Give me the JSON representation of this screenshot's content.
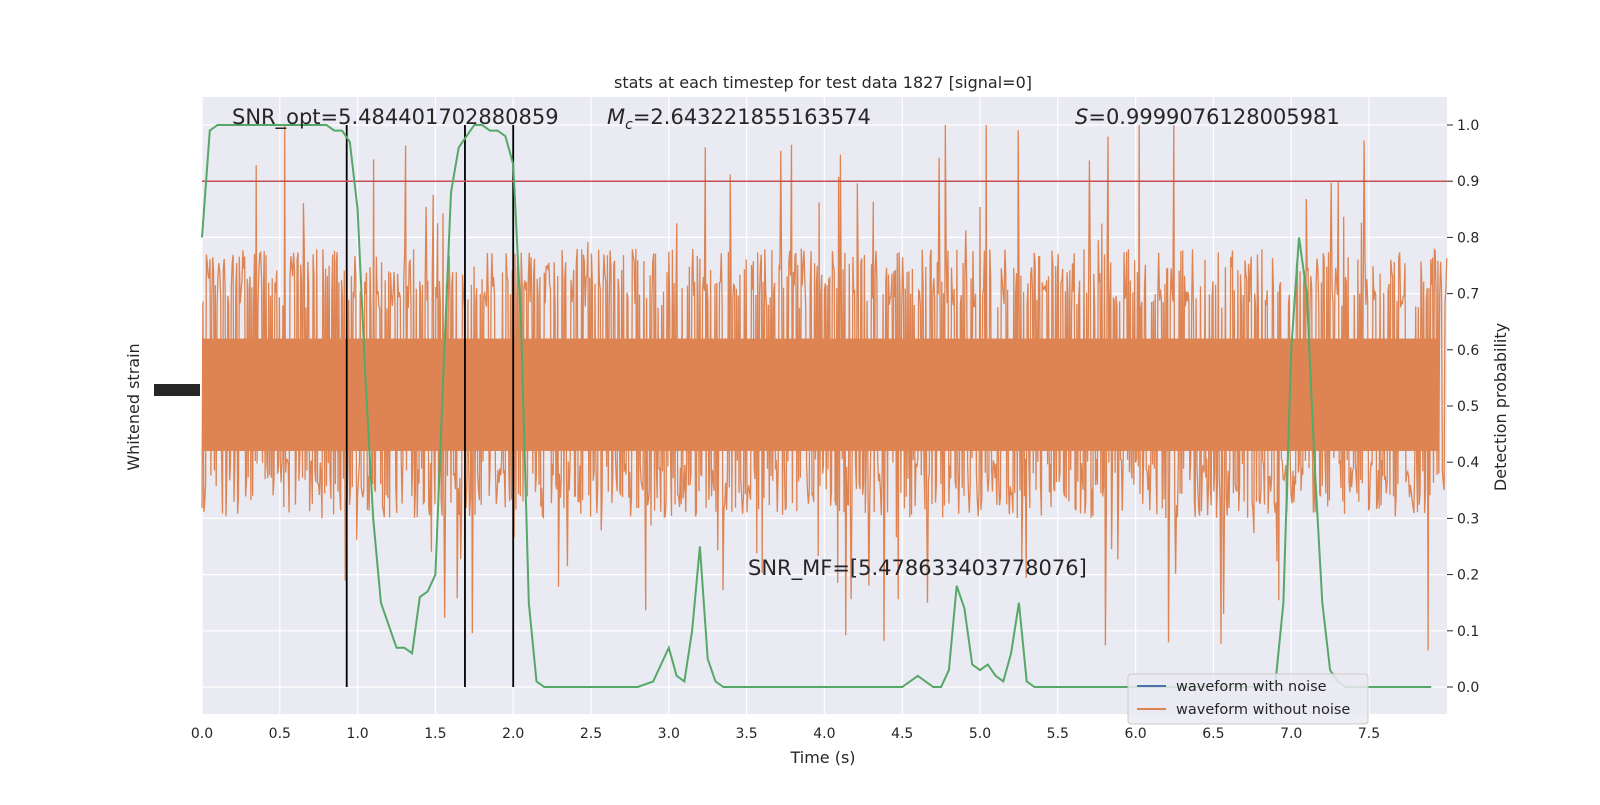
{
  "chart_data": {
    "type": "line",
    "title": "stats at each timestep for test data 1827 [signal=0]",
    "xlabel": "Time (s)",
    "ylabel_left": "Whitened strain",
    "ylabel_right": "Detection probability",
    "xlim": [
      0.0,
      8.0
    ],
    "ylim_right": [
      -0.05,
      1.05
    ],
    "x_ticks": [
      "0.0",
      "0.5",
      "1.0",
      "1.5",
      "2.0",
      "2.5",
      "3.0",
      "3.5",
      "4.0",
      "4.5",
      "5.0",
      "5.5",
      "6.0",
      "6.5",
      "7.0",
      "7.5"
    ],
    "y_ticks_right": [
      "0.0",
      "0.1",
      "0.2",
      "0.3",
      "0.4",
      "0.5",
      "0.6",
      "0.7",
      "0.8",
      "0.9",
      "1.0"
    ],
    "grid": true,
    "legend_position": "bottom-right",
    "threshold": {
      "value": 0.9,
      "color": "#c44e52"
    },
    "vlines_x": [
      0.93,
      1.69,
      2.0
    ],
    "annotations": {
      "snr_opt": "SNR_opt=5.484401702880859",
      "mc_symbol": "M",
      "mc_sub": "c",
      "mc_value": "=2.643221855163574",
      "s_symbol": "S",
      "s_value": "=0.9999076128005981",
      "snr_mf": "SNR_MF=[5.47863340377807­6]"
    },
    "series": [
      {
        "name": "waveform with noise",
        "color": "#4c72b0",
        "values": []
      },
      {
        "name": "waveform without noise",
        "color": "#dd8452",
        "noise_band": [
          0.3,
          0.78
        ],
        "noise_spike_range": [
          0.0,
          1.0
        ]
      },
      {
        "color": "#55a868",
        "x": [
          0.0,
          0.05,
          0.1,
          0.15,
          0.2,
          0.25,
          0.3,
          0.35,
          0.4,
          0.45,
          0.5,
          0.55,
          0.6,
          0.65,
          0.7,
          0.75,
          0.8,
          0.85,
          0.9,
          0.95,
          1.0,
          1.05,
          1.1,
          1.15,
          1.2,
          1.25,
          1.3,
          1.35,
          1.4,
          1.45,
          1.5,
          1.55,
          1.6,
          1.65,
          1.7,
          1.75,
          1.8,
          1.85,
          1.9,
          1.95,
          2.0,
          2.05,
          2.1,
          2.15,
          2.2,
          2.25,
          2.3,
          2.35,
          2.4,
          2.5,
          2.6,
          2.7,
          2.8,
          2.9,
          2.95,
          3.0,
          3.05,
          3.1,
          3.15,
          3.2,
          3.25,
          3.3,
          3.35,
          3.4,
          3.5,
          3.6,
          3.7,
          3.8,
          3.9,
          4.0,
          4.1,
          4.2,
          4.3,
          4.4,
          4.5,
          4.55,
          4.6,
          4.65,
          4.7,
          4.75,
          4.8,
          4.85,
          4.9,
          4.95,
          5.0,
          5.05,
          5.1,
          5.15,
          5.2,
          5.25,
          5.3,
          5.35,
          5.4,
          5.45,
          5.5,
          5.6,
          5.7,
          5.8,
          5.9,
          6.0,
          6.1,
          6.2,
          6.3,
          6.4,
          6.5,
          6.6,
          6.7,
          6.8,
          6.9,
          6.95,
          7.0,
          7.05,
          7.1,
          7.15,
          7.2,
          7.25,
          7.3,
          7.35,
          7.4,
          7.45,
          7.5,
          7.6,
          7.7,
          7.8,
          7.9
        ],
        "values": [
          0.8,
          0.99,
          1.0,
          1.0,
          1.0,
          1.0,
          1.0,
          1.0,
          1.0,
          1.0,
          1.0,
          1.0,
          1.0,
          1.0,
          1.0,
          1.0,
          1.0,
          0.99,
          0.99,
          0.97,
          0.85,
          0.55,
          0.3,
          0.15,
          0.11,
          0.07,
          0.07,
          0.06,
          0.16,
          0.17,
          0.2,
          0.55,
          0.88,
          0.96,
          0.98,
          1.0,
          1.0,
          0.99,
          0.99,
          0.98,
          0.93,
          0.65,
          0.15,
          0.01,
          0.0,
          0.0,
          0.0,
          0.0,
          0.0,
          0.0,
          0.0,
          0.0,
          0.0,
          0.01,
          0.04,
          0.07,
          0.02,
          0.01,
          0.1,
          0.25,
          0.05,
          0.01,
          0.0,
          0.0,
          0.0,
          0.0,
          0.0,
          0.0,
          0.0,
          0.0,
          0.0,
          0.0,
          0.0,
          0.0,
          0.0,
          0.01,
          0.02,
          0.01,
          0.0,
          0.0,
          0.03,
          0.18,
          0.14,
          0.04,
          0.03,
          0.04,
          0.02,
          0.01,
          0.06,
          0.15,
          0.01,
          0.0,
          0.0,
          0.0,
          0.0,
          0.0,
          0.0,
          0.0,
          0.0,
          0.0,
          0.0,
          0.0,
          0.0,
          0.0,
          0.0,
          0.0,
          0.0,
          0.0,
          0.01,
          0.15,
          0.6,
          0.8,
          0.7,
          0.4,
          0.15,
          0.03,
          0.01,
          0.0,
          0.0,
          0.0,
          0.0,
          0.0,
          0.0,
          0.0,
          0.0
        ]
      }
    ]
  }
}
